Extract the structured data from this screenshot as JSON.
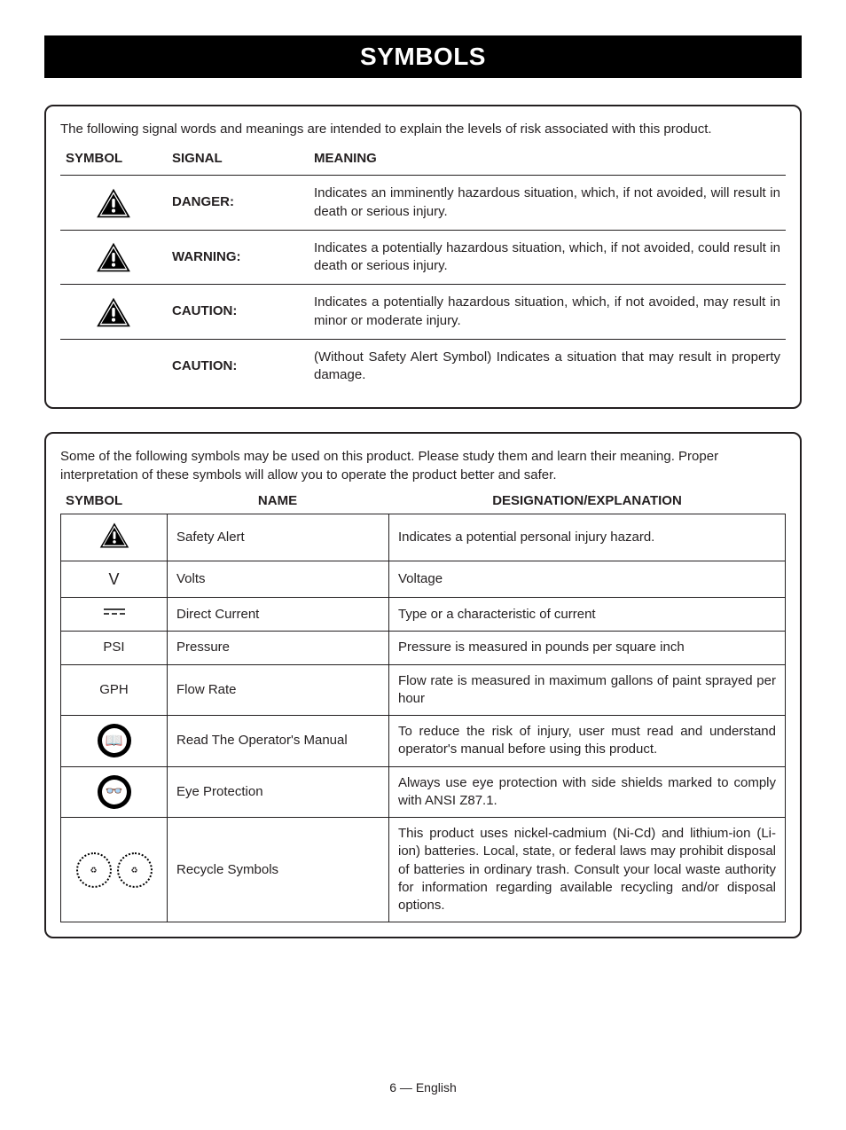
{
  "title": "SYMBOLS",
  "footer": "6 — English",
  "signalBox": {
    "intro": "The following signal words and meanings are intended to explain the levels of risk associated with this product.",
    "headers": {
      "symbol": "SYMBOL",
      "signal": "SIGNAL",
      "meaning": "MEANING"
    },
    "rows": [
      {
        "hasIcon": true,
        "signal": "DANGER:",
        "meaning": "Indicates an imminently hazardous situation, which, if not avoided, will result in death or serious injury."
      },
      {
        "hasIcon": true,
        "signal": "WARNING:",
        "meaning": "Indicates a potentially hazardous situation, which, if not avoided, could result in death or serious injury."
      },
      {
        "hasIcon": true,
        "signal": "CAUTION:",
        "meaning": "Indicates a potentially hazardous situation, which, if not avoided, may result in minor or moderate injury."
      },
      {
        "hasIcon": false,
        "signal": "CAUTION:",
        "meaning": "(Without Safety Alert Symbol) Indicates a situation that may result in property damage."
      }
    ]
  },
  "legendBox": {
    "intro": "Some of the following symbols may be used on this product. Please study them and learn their meaning. Proper interpretation of these symbols will allow you to operate the product better and safer.",
    "headers": {
      "symbol": "SYMBOL",
      "name": "NAME",
      "desc": "DESIGNATION/EXPLANATION"
    },
    "rows": [
      {
        "sym": "alert",
        "name": "Safety Alert",
        "desc": "Indicates a potential personal injury hazard."
      },
      {
        "sym": "V",
        "name": "Volts",
        "desc": "Voltage"
      },
      {
        "sym": "dc",
        "name": "Direct Current",
        "desc": "Type or a characteristic of current"
      },
      {
        "sym": "PSI",
        "name": "Pressure",
        "desc": "Pressure is measured in pounds per square inch"
      },
      {
        "sym": "GPH",
        "name": "Flow Rate",
        "desc": "Flow rate is measured in maximum gallons of paint sprayed per hour"
      },
      {
        "sym": "manual",
        "name": "Read The Operator's Manual",
        "desc": "To reduce the risk of injury, user must read and understand operator's manual before using this product."
      },
      {
        "sym": "eye",
        "name": "Eye Protection",
        "desc": "Always use eye protection with side shields marked to comply with ANSI Z87.1."
      },
      {
        "sym": "recycle",
        "name": "Recycle Symbols",
        "desc": "This product uses nickel-cadmium (Ni-Cd) and lithium-ion (Li-ion) batteries. Local, state, or federal laws may prohibit disposal of batteries in ordinary trash. Consult your local waste authority for information regarding available recycling and/or disposal options."
      }
    ]
  },
  "colors": {
    "text": "#231f20",
    "bg": "#ffffff",
    "bar": "#000000",
    "border": "#231f20"
  }
}
